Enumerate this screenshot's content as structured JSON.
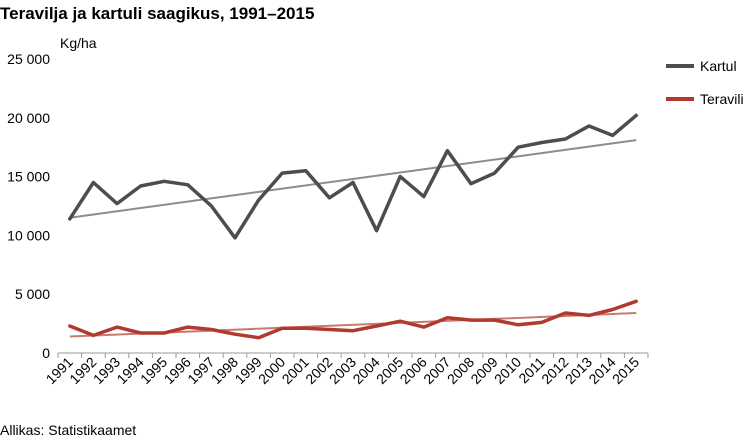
{
  "title": "Teravilja ja kartuli saagikus, 1991–2015",
  "unit_label": "Kg/ha",
  "source": "Allikas: Statistikaamet",
  "chart_data": {
    "type": "line",
    "title": "Teravilja ja kartuli saagikus, 1991–2015",
    "ylabel": "Kg/ha",
    "xlabel": "",
    "ylim": [
      0,
      25000
    ],
    "yticks": [
      0,
      5000,
      10000,
      15000,
      20000,
      25000
    ],
    "ytick_labels": [
      "0",
      "5 000",
      "10 000",
      "15 000",
      "20 000",
      "25 000"
    ],
    "grid": false,
    "legend": "right",
    "x": [
      "1991",
      "1992",
      "1993",
      "1994",
      "1995",
      "1996",
      "1997",
      "1998",
      "1999",
      "2000",
      "2001",
      "2002",
      "2003",
      "2004",
      "2005",
      "2006",
      "2007",
      "2008",
      "2009",
      "2010",
      "2011",
      "2012",
      "2013",
      "2014",
      "2015"
    ],
    "series": [
      {
        "name": "Kartul",
        "color": "#4d4d4d",
        "trend_color": "#8c8c8c",
        "values": [
          11400,
          14500,
          12700,
          14200,
          14600,
          14300,
          12500,
          9800,
          13000,
          15300,
          15500,
          13200,
          14500,
          10400,
          15000,
          13300,
          17200,
          14400,
          15300,
          17500,
          17900,
          18200,
          19300,
          18500,
          20200
        ],
        "trend": [
          11500,
          18100
        ]
      },
      {
        "name": "Teravili",
        "color": "#b03a2e",
        "trend_color": "#c97a70",
        "values": [
          2300,
          1500,
          2200,
          1700,
          1700,
          2200,
          2000,
          1600,
          1300,
          2100,
          2100,
          2000,
          1900,
          2300,
          2700,
          2200,
          3000,
          2800,
          2800,
          2400,
          2600,
          3400,
          3200,
          3700,
          4400
        ],
        "trend": [
          1400,
          3400
        ]
      }
    ]
  }
}
